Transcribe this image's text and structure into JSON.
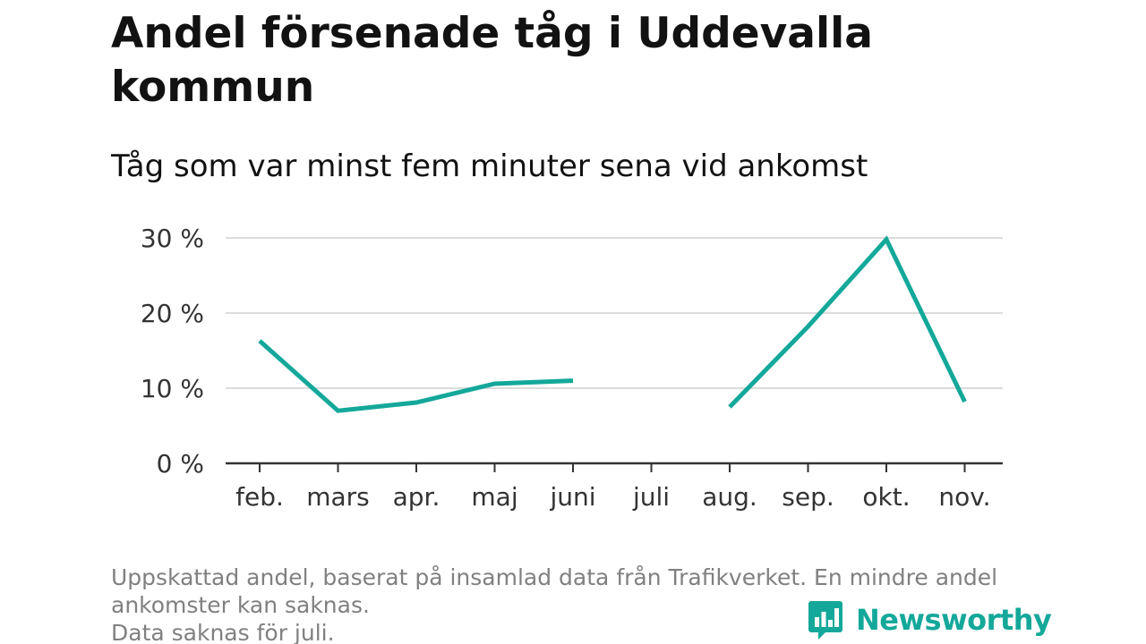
{
  "header": {
    "title_line1": "Andel försenade tåg i Uddevalla",
    "title_line2": "kommun",
    "subtitle": "Tåg som var minst fem minuter sena vid ankomst"
  },
  "chart_data": {
    "type": "line",
    "categories": [
      "feb.",
      "mars",
      "apr.",
      "maj",
      "juni",
      "juli",
      "aug.",
      "sep.",
      "okt.",
      "nov."
    ],
    "y_ticks": [
      {
        "value": 0,
        "label": "0 %"
      },
      {
        "value": 10,
        "label": "10 %"
      },
      {
        "value": 20,
        "label": "20 %"
      },
      {
        "value": 30,
        "label": "30 %"
      }
    ],
    "series": [
      {
        "values": [
          16.3,
          7.0,
          8.1,
          10.6,
          11.0,
          null,
          7.5,
          18.2,
          29.8,
          8.2
        ],
        "color": "#14a89a"
      }
    ],
    "ylim": [
      0,
      30
    ],
    "grid": true,
    "xlabel": "",
    "ylabel": ""
  },
  "footnote": {
    "line1": "Uppskattad andel, baserat på insamlad data från Trafikverket. En mindre andel",
    "line2": "ankomster kan saknas.",
    "line3": "Data saknas för juli."
  },
  "logo": {
    "text": "Newsworthy",
    "icon": "bar-chart-speech-bubble-icon",
    "color": "#14a89a"
  }
}
